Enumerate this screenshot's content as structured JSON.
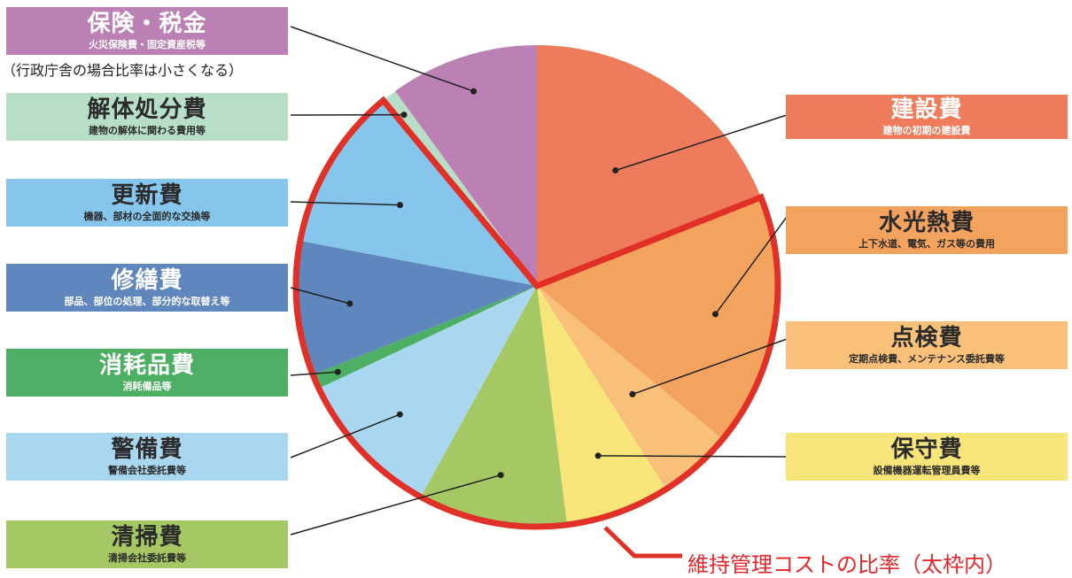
{
  "chart_data": {
    "type": "pie",
    "slices": [
      {
        "key": "kensetsu",
        "title": "建設費",
        "sub": "建物の初期の建設費",
        "value": 19,
        "color": "#ee7c5c"
      },
      {
        "key": "suikonetsu",
        "title": "水光熱費",
        "sub": "上下水道、電気、ガス等の費用",
        "value": 17,
        "color": "#f4a35e"
      },
      {
        "key": "tenken",
        "title": "点検費",
        "sub": "定期点検費、メンテナンス委託費等",
        "value": 5,
        "color": "#f9c07a"
      },
      {
        "key": "hoshu",
        "title": "保守費",
        "sub": "設備機器運転管理員費等",
        "value": 7,
        "color": "#f8e57a"
      },
      {
        "key": "seiso",
        "title": "清掃費",
        "sub": "清掃会社委託費等",
        "value": 10,
        "color": "#a6c864"
      },
      {
        "key": "keibi",
        "title": "警備費",
        "sub": "警備会社委託費等",
        "value": 10,
        "color": "#a9d7ef"
      },
      {
        "key": "shomo",
        "title": "消耗品費",
        "sub": "消耗備品等",
        "value": 1,
        "color": "#4caf63"
      },
      {
        "key": "shuzen",
        "title": "修繕費",
        "sub": "部品、部位の処理、部分的な取替え等",
        "value": 9,
        "color": "#5f86bd"
      },
      {
        "key": "koshin",
        "title": "更新費",
        "sub": "機器、部材の全面的な交換等",
        "value": 11,
        "color": "#86c6ec"
      },
      {
        "key": "kaitai",
        "title": "解体処分費",
        "sub": "建物の解体に関わる費用等",
        "value": 1,
        "color": "#b7dfc8"
      },
      {
        "key": "hoken",
        "title": "保険・税金",
        "sub": "火災保険費・固定資産税等",
        "value": 10,
        "color": "#bb80b4"
      }
    ],
    "highlight": {
      "from": "suikonetsu",
      "to": "koshin",
      "color": "#e03027"
    }
  },
  "note": "（行政庁舎の場合比率は小さくなる）",
  "caption": "維持管理コストの比率（太枠内）"
}
